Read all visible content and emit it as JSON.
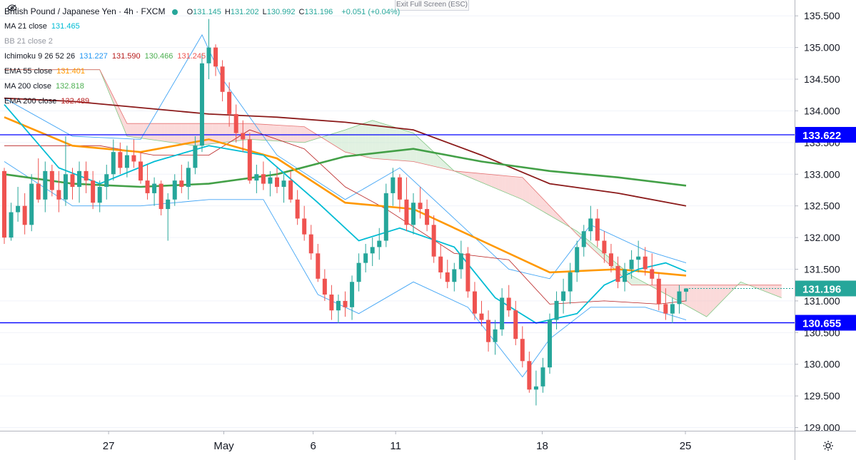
{
  "header": {
    "title": "British Pound / Japanese Yen · 4h · FXCM",
    "ohlc": [
      {
        "k": "O",
        "v": "131.145"
      },
      {
        "k": "H",
        "v": "131.202"
      },
      {
        "k": "L",
        "v": "130.992"
      },
      {
        "k": "C",
        "v": "131.196"
      }
    ],
    "change": "+0.051 (+0.04%)",
    "fullscreen_label": "Exit Full Screen (ESC)"
  },
  "indicators": [
    {
      "label": "MA 21 close",
      "values": [
        "131.465"
      ],
      "colors": [
        "#00bcd4"
      ]
    },
    {
      "label": "BB 21 close 2",
      "values": [],
      "colors": [],
      "hidden": true
    },
    {
      "label": "Ichimoku 9 26 52 26",
      "values": [
        "131.227",
        "131.590",
        "130.466",
        "131.245"
      ],
      "colors": [
        "#2196f3",
        "#b71c1c",
        "#4caf50",
        "#ef5350"
      ]
    },
    {
      "label": "EMA 55 close",
      "values": [
        "131.401"
      ],
      "colors": [
        "#ff9800"
      ]
    },
    {
      "label": "MA 200 close",
      "values": [
        "132.818"
      ],
      "colors": [
        "#4caf50"
      ]
    },
    {
      "label": "EMA 200 close",
      "values": [
        "132.489"
      ],
      "colors": [
        "#b71c1c"
      ]
    }
  ],
  "chart_data": {
    "type": "candlestick",
    "symbol": "GBPJPY",
    "timeframe": "4h",
    "ylim": [
      128.95,
      135.75
    ],
    "y_ticks": [
      "135.500",
      "135.000",
      "134.500",
      "134.000",
      "133.500",
      "133.000",
      "132.500",
      "132.000",
      "131.500",
      "131.000",
      "130.500",
      "130.000",
      "129.500",
      "129.000"
    ],
    "x_ticks": [
      "27",
      "May",
      "6",
      "11",
      "18",
      "25"
    ],
    "horizontal_levels": [
      {
        "value": 133.622,
        "label": "133.622",
        "color": "#0000ff"
      },
      {
        "value": 130.655,
        "label": "130.655",
        "color": "#0000ff"
      }
    ],
    "last_price": {
      "value": 131.196,
      "label": "131.196",
      "color": "#26a69a"
    },
    "colors": {
      "up": "#26a69a",
      "down": "#ef5350",
      "ema200": "#8b1a1a",
      "ma200": "#43a047",
      "ema55": "#ff9800",
      "ma21": "#00bcd4",
      "bb": "#42a5f5",
      "ichimoku_base": "#b71c1c",
      "cloud_bear": "#f8bbbb",
      "cloud_bull": "#c8e6c9"
    },
    "candles": [
      [
        133.05,
        133.1,
        131.9,
        132.0
      ],
      [
        132.0,
        132.55,
        131.95,
        132.4
      ],
      [
        132.4,
        132.8,
        132.25,
        132.5
      ],
      [
        132.5,
        132.7,
        132.05,
        132.2
      ],
      [
        132.2,
        133.0,
        132.1,
        132.85
      ],
      [
        132.85,
        133.25,
        132.55,
        132.6
      ],
      [
        132.6,
        133.2,
        132.4,
        133.05
      ],
      [
        133.05,
        133.15,
        132.65,
        132.75
      ],
      [
        132.75,
        133.05,
        132.4,
        132.6
      ],
      [
        132.6,
        133.6,
        132.5,
        133.0
      ],
      [
        133.0,
        133.1,
        132.6,
        132.8
      ],
      [
        132.8,
        133.2,
        132.55,
        133.05
      ],
      [
        133.05,
        133.2,
        132.7,
        132.9
      ],
      [
        132.9,
        133.05,
        132.45,
        132.55
      ],
      [
        132.55,
        132.9,
        132.4,
        132.8
      ],
      [
        132.8,
        133.15,
        132.6,
        133.0
      ],
      [
        133.0,
        133.55,
        132.9,
        133.35
      ],
      [
        133.35,
        133.5,
        133.0,
        133.1
      ],
      [
        133.1,
        133.45,
        132.95,
        133.3
      ],
      [
        133.3,
        133.55,
        133.1,
        133.2
      ],
      [
        133.2,
        133.35,
        132.85,
        132.9
      ],
      [
        132.9,
        133.15,
        132.6,
        132.7
      ],
      [
        132.7,
        132.95,
        132.5,
        132.85
      ],
      [
        132.85,
        132.9,
        132.35,
        132.45
      ],
      [
        132.45,
        132.7,
        131.95,
        132.6
      ],
      [
        132.6,
        133.0,
        132.5,
        132.9
      ],
      [
        132.9,
        133.15,
        132.7,
        132.8
      ],
      [
        132.8,
        133.2,
        132.6,
        133.1
      ],
      [
        133.1,
        133.6,
        133.0,
        133.45
      ],
      [
        133.45,
        134.9,
        133.35,
        134.75
      ],
      [
        134.75,
        135.45,
        134.5,
        135.0
      ],
      [
        135.0,
        135.05,
        134.55,
        134.7
      ],
      [
        134.7,
        134.8,
        134.15,
        134.3
      ],
      [
        134.3,
        134.45,
        133.75,
        133.95
      ],
      [
        133.95,
        134.1,
        133.5,
        133.65
      ],
      [
        133.65,
        133.85,
        133.35,
        133.55
      ],
      [
        133.55,
        133.65,
        132.85,
        132.9
      ],
      [
        132.9,
        133.15,
        132.7,
        133.0
      ],
      [
        133.0,
        133.2,
        132.75,
        132.85
      ],
      [
        132.85,
        133.05,
        132.65,
        132.95
      ],
      [
        132.95,
        133.1,
        132.7,
        132.8
      ],
      [
        132.8,
        133.0,
        132.55,
        132.9
      ],
      [
        132.9,
        133.05,
        132.55,
        132.6
      ],
      [
        132.6,
        132.75,
        132.2,
        132.3
      ],
      [
        132.3,
        132.5,
        131.95,
        132.05
      ],
      [
        132.05,
        132.2,
        131.65,
        131.75
      ],
      [
        131.75,
        131.9,
        131.3,
        131.35
      ],
      [
        131.35,
        131.5,
        131.0,
        131.1
      ],
      [
        131.1,
        131.25,
        130.7,
        130.85
      ],
      [
        130.85,
        131.1,
        130.65,
        131.0
      ],
      [
        131.0,
        131.15,
        130.75,
        130.9
      ],
      [
        130.9,
        131.4,
        130.7,
        131.3
      ],
      [
        131.3,
        131.75,
        131.15,
        131.6
      ],
      [
        131.6,
        131.9,
        131.45,
        131.75
      ],
      [
        131.75,
        132.0,
        131.55,
        131.85
      ],
      [
        131.85,
        132.15,
        131.65,
        131.95
      ],
      [
        131.95,
        132.85,
        131.85,
        132.7
      ],
      [
        132.7,
        133.1,
        132.5,
        132.95
      ],
      [
        132.95,
        133.0,
        132.4,
        132.6
      ],
      [
        132.6,
        132.95,
        132.1,
        132.2
      ],
      [
        132.2,
        132.7,
        132.05,
        132.55
      ],
      [
        132.55,
        132.8,
        132.3,
        132.45
      ],
      [
        132.45,
        132.6,
        132.1,
        132.2
      ],
      [
        132.2,
        132.35,
        131.6,
        131.7
      ],
      [
        131.7,
        131.9,
        131.35,
        131.45
      ],
      [
        131.45,
        131.65,
        131.2,
        131.3
      ],
      [
        131.3,
        131.6,
        131.15,
        131.5
      ],
      [
        131.5,
        131.95,
        131.35,
        131.75
      ],
      [
        131.75,
        131.85,
        131.05,
        131.15
      ],
      [
        131.15,
        131.3,
        130.7,
        130.8
      ],
      [
        130.8,
        131.0,
        130.6,
        130.7
      ],
      [
        130.7,
        130.85,
        130.2,
        130.35
      ],
      [
        130.35,
        130.7,
        130.15,
        130.55
      ],
      [
        130.55,
        131.2,
        130.45,
        131.05
      ],
      [
        131.05,
        131.25,
        130.75,
        130.85
      ],
      [
        130.85,
        131.0,
        130.3,
        130.4
      ],
      [
        130.4,
        130.6,
        129.95,
        130.05
      ],
      [
        130.05,
        130.2,
        129.55,
        129.6
      ],
      [
        129.6,
        129.9,
        129.35,
        129.65
      ],
      [
        129.65,
        130.1,
        129.55,
        129.95
      ],
      [
        129.95,
        130.8,
        129.85,
        130.7
      ],
      [
        130.7,
        131.15,
        130.55,
        131.0
      ],
      [
        131.0,
        131.35,
        130.8,
        131.15
      ],
      [
        131.15,
        131.6,
        130.95,
        131.45
      ],
      [
        131.45,
        131.95,
        131.3,
        131.85
      ],
      [
        131.85,
        132.2,
        131.7,
        132.1
      ],
      [
        132.1,
        132.5,
        131.95,
        132.3
      ],
      [
        132.3,
        132.45,
        131.85,
        131.95
      ],
      [
        131.95,
        132.1,
        131.6,
        131.75
      ],
      [
        131.75,
        131.9,
        131.45,
        131.55
      ],
      [
        131.55,
        131.7,
        131.2,
        131.3
      ],
      [
        131.3,
        131.6,
        131.15,
        131.5
      ],
      [
        131.5,
        131.8,
        131.35,
        131.65
      ],
      [
        131.65,
        131.95,
        131.45,
        131.7
      ],
      [
        131.7,
        131.85,
        131.4,
        131.5
      ],
      [
        131.5,
        131.75,
        131.25,
        131.35
      ],
      [
        131.35,
        131.45,
        130.85,
        130.95
      ],
      [
        130.95,
        131.2,
        130.7,
        130.8
      ],
      [
        130.8,
        131.05,
        130.65,
        130.95
      ],
      [
        130.95,
        131.25,
        130.8,
        131.15
      ],
      [
        131.145,
        131.202,
        130.992,
        131.196
      ]
    ],
    "ema200": [
      [
        0,
        134.2
      ],
      [
        10,
        134.15
      ],
      [
        20,
        134.05
      ],
      [
        30,
        133.95
      ],
      [
        40,
        133.9
      ],
      [
        50,
        133.82
      ],
      [
        60,
        133.7
      ],
      [
        70,
        133.3
      ],
      [
        80,
        132.85
      ],
      [
        90,
        132.7
      ],
      [
        100,
        132.5
      ]
    ],
    "ma200": [
      [
        0,
        133.0
      ],
      [
        10,
        132.85
      ],
      [
        20,
        132.8
      ],
      [
        30,
        132.85
      ],
      [
        40,
        133.0
      ],
      [
        50,
        133.28
      ],
      [
        60,
        133.4
      ],
      [
        70,
        133.2
      ],
      [
        80,
        133.05
      ],
      [
        90,
        132.95
      ],
      [
        100,
        132.82
      ]
    ],
    "ema55": [
      [
        0,
        133.9
      ],
      [
        10,
        133.45
      ],
      [
        20,
        133.35
      ],
      [
        30,
        133.55
      ],
      [
        40,
        133.25
      ],
      [
        50,
        132.55
      ],
      [
        60,
        132.45
      ],
      [
        70,
        131.95
      ],
      [
        80,
        131.45
      ],
      [
        90,
        131.5
      ],
      [
        100,
        131.4
      ]
    ],
    "ma21": [
      [
        0,
        134.1
      ],
      [
        8,
        133.1
      ],
      [
        14,
        132.85
      ],
      [
        22,
        133.2
      ],
      [
        30,
        133.45
      ],
      [
        38,
        133.3
      ],
      [
        46,
        132.55
      ],
      [
        52,
        131.95
      ],
      [
        58,
        132.15
      ],
      [
        66,
        131.85
      ],
      [
        72,
        131.05
      ],
      [
        78,
        130.65
      ],
      [
        84,
        130.8
      ],
      [
        88,
        131.25
      ],
      [
        93,
        131.5
      ],
      [
        97,
        131.6
      ],
      [
        100,
        131.465
      ]
    ],
    "bb_upper": [
      [
        0,
        134.2
      ],
      [
        10,
        133.6
      ],
      [
        20,
        133.55
      ],
      [
        29,
        135.2
      ],
      [
        32,
        134.5
      ],
      [
        40,
        133.3
      ],
      [
        50,
        132.6
      ],
      [
        58,
        133.1
      ],
      [
        66,
        132.3
      ],
      [
        74,
        131.5
      ],
      [
        80,
        131.35
      ],
      [
        86,
        132.2
      ],
      [
        94,
        131.8
      ],
      [
        100,
        131.6
      ]
    ],
    "bb_lower": [
      [
        0,
        133.2
      ],
      [
        10,
        132.5
      ],
      [
        20,
        132.5
      ],
      [
        30,
        132.6
      ],
      [
        38,
        132.6
      ],
      [
        46,
        131.1
      ],
      [
        52,
        130.8
      ],
      [
        60,
        131.3
      ],
      [
        68,
        130.9
      ],
      [
        76,
        129.8
      ],
      [
        80,
        130.4
      ],
      [
        86,
        130.9
      ],
      [
        94,
        130.9
      ],
      [
        100,
        130.7
      ]
    ],
    "kijun": [
      [
        0,
        133.45
      ],
      [
        14,
        133.45
      ],
      [
        22,
        133.3
      ],
      [
        30,
        133.3
      ],
      [
        36,
        133.7
      ],
      [
        44,
        133.4
      ],
      [
        50,
        132.8
      ],
      [
        56,
        132.45
      ],
      [
        66,
        131.75
      ],
      [
        74,
        131.65
      ],
      [
        80,
        130.95
      ],
      [
        88,
        131.0
      ],
      [
        96,
        130.95
      ],
      [
        100,
        131.0
      ]
    ],
    "span_a": [
      [
        0,
        134.65
      ],
      [
        14,
        134.65
      ],
      [
        18,
        133.6
      ],
      [
        28,
        133.45
      ],
      [
        36,
        133.55
      ],
      [
        44,
        133.5
      ],
      [
        50,
        133.7
      ],
      [
        54,
        133.85
      ],
      [
        60,
        133.65
      ],
      [
        66,
        133.05
      ],
      [
        76,
        132.6
      ],
      [
        84,
        132.1
      ],
      [
        92,
        131.4
      ],
      [
        98,
        131.05
      ],
      [
        103,
        130.75
      ],
      [
        108,
        131.3
      ],
      [
        114,
        131.05
      ]
    ],
    "span_b": [
      [
        0,
        134.65
      ],
      [
        14,
        134.65
      ],
      [
        18,
        133.8
      ],
      [
        28,
        133.8
      ],
      [
        36,
        133.8
      ],
      [
        44,
        133.75
      ],
      [
        50,
        133.35
      ],
      [
        54,
        133.25
      ],
      [
        60,
        133.2
      ],
      [
        66,
        133.05
      ],
      [
        76,
        132.95
      ],
      [
        84,
        132.05
      ],
      [
        92,
        131.25
      ],
      [
        98,
        131.25
      ],
      [
        103,
        131.25
      ],
      [
        108,
        131.25
      ],
      [
        114,
        131.25
      ]
    ]
  },
  "axis_labels": {
    "prices": [
      "135.500",
      "135.000",
      "134.500",
      "134.000",
      "133.500",
      "133.000",
      "132.500",
      "132.000",
      "131.500",
      "131.000",
      "130.500",
      "130.000",
      "129.500",
      "129.000"
    ],
    "dates": [
      "27",
      "May",
      "6",
      "11",
      "18",
      "25"
    ]
  }
}
